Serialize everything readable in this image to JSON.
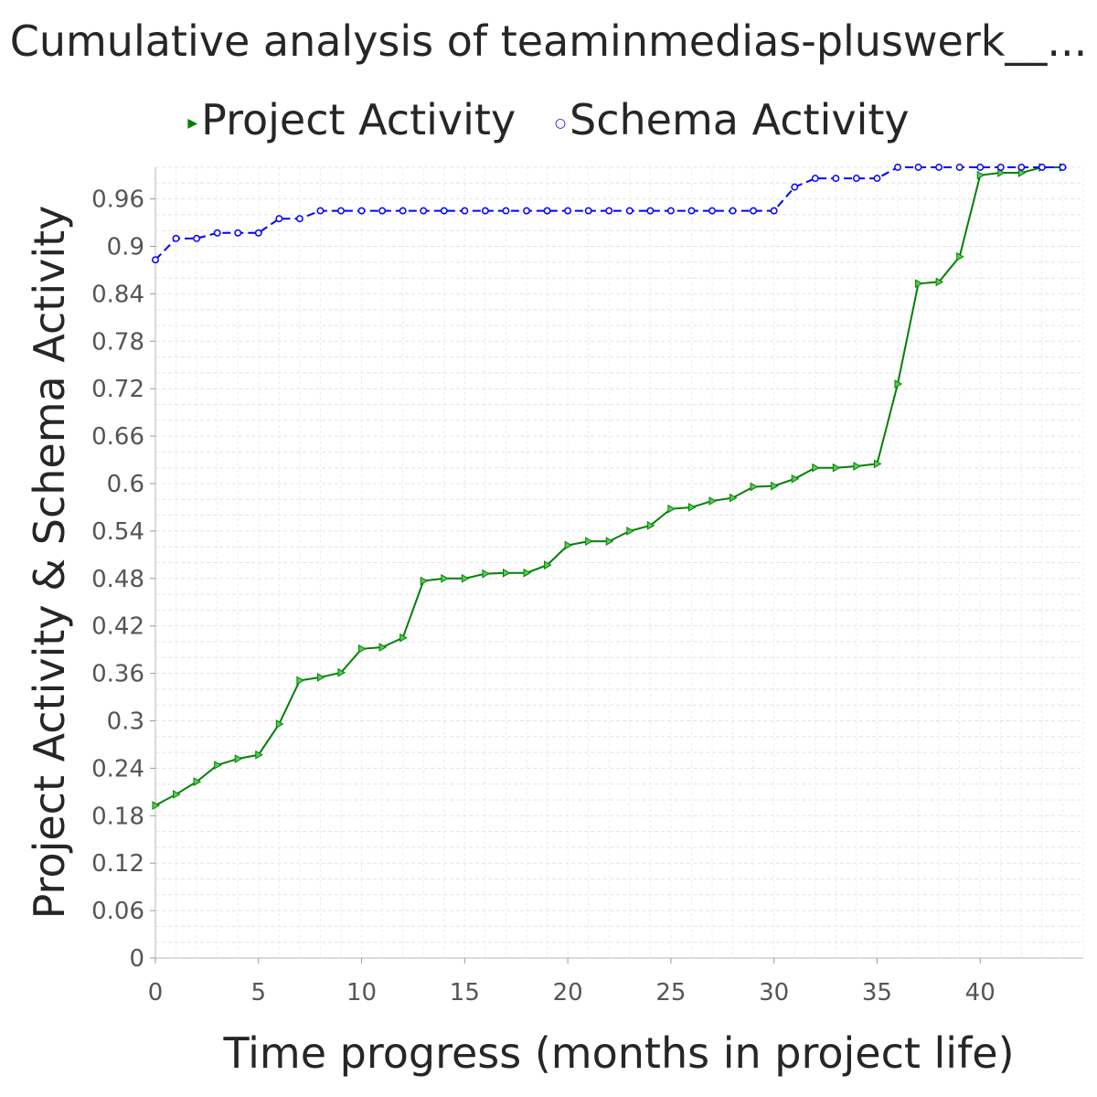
{
  "chart_data": {
    "type": "line",
    "title": "Cumulative analysis of teaminmedias-pluswerk__...",
    "xlabel": "Time progress (months in project life)",
    "ylabel": "Project Activity & Schema Activity",
    "xlim": [
      0,
      45
    ],
    "ylim": [
      0,
      1.0
    ],
    "x_ticks": [
      0,
      5,
      10,
      15,
      20,
      25,
      30,
      35,
      40
    ],
    "x_tick_labels": [
      "0",
      "5",
      "10",
      "15",
      "20",
      "25",
      "30",
      "35",
      "40"
    ],
    "y_ticks": [
      0,
      0.06,
      0.12,
      0.18,
      0.24,
      0.3,
      0.36,
      0.42,
      0.48,
      0.54,
      0.6,
      0.66,
      0.72,
      0.78,
      0.84,
      0.9,
      0.96
    ],
    "y_tick_labels": [
      "0",
      "0.06",
      "0.12",
      "0.18",
      "0.24",
      "0.3",
      "0.36",
      "0.42",
      "0.48",
      "0.54",
      "0.6",
      "0.66",
      "0.72",
      "0.78",
      "0.84",
      "0.9",
      "0.96"
    ],
    "grid": true,
    "legend_position": "top",
    "x": [
      0,
      1,
      2,
      3,
      4,
      5,
      6,
      7,
      8,
      9,
      10,
      11,
      12,
      13,
      14,
      15,
      16,
      17,
      18,
      19,
      20,
      21,
      22,
      23,
      24,
      25,
      26,
      27,
      28,
      29,
      30,
      31,
      32,
      33,
      34,
      35,
      36,
      37,
      38,
      39,
      40,
      41,
      42,
      43,
      44
    ],
    "series": [
      {
        "name": "Project Activity",
        "color": "#008000",
        "marker": "triangle-right",
        "values": [
          0.193,
          0.207,
          0.223,
          0.244,
          0.252,
          0.257,
          0.296,
          0.351,
          0.355,
          0.361,
          0.391,
          0.393,
          0.405,
          0.477,
          0.48,
          0.48,
          0.486,
          0.487,
          0.487,
          0.497,
          0.522,
          0.527,
          0.527,
          0.54,
          0.547,
          0.568,
          0.57,
          0.578,
          0.582,
          0.596,
          0.597,
          0.606,
          0.62,
          0.62,
          0.622,
          0.625,
          0.726,
          0.853,
          0.855,
          0.887,
          0.99,
          0.993,
          0.993,
          1.0,
          1.0
        ]
      },
      {
        "name": "Schema Activity",
        "color": "#0000ff",
        "marker": "circle",
        "values": [
          0.883,
          0.91,
          0.91,
          0.917,
          0.917,
          0.917,
          0.935,
          0.935,
          0.945,
          0.945,
          0.945,
          0.945,
          0.945,
          0.945,
          0.945,
          0.945,
          0.945,
          0.945,
          0.945,
          0.945,
          0.945,
          0.945,
          0.945,
          0.945,
          0.945,
          0.945,
          0.945,
          0.945,
          0.945,
          0.945,
          0.945,
          0.975,
          0.986,
          0.986,
          0.986,
          0.986,
          1.0,
          1.0,
          1.0,
          1.0,
          1.0,
          1.0,
          1.0,
          1.0,
          1.0
        ]
      }
    ]
  }
}
